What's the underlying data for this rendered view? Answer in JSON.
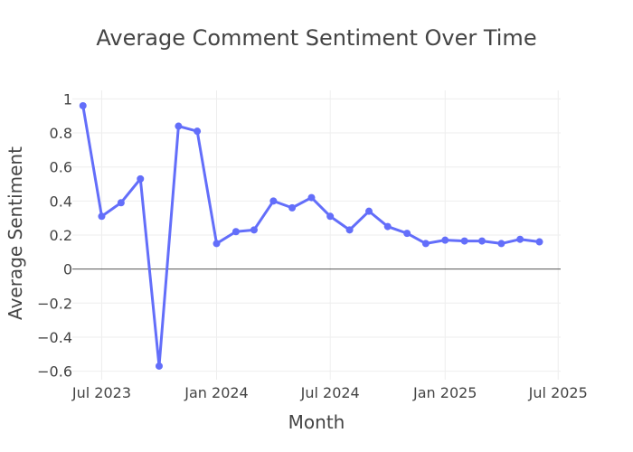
{
  "chart_data": {
    "type": "line",
    "title": "Average Comment Sentiment Over Time",
    "xlabel": "Month",
    "ylabel": "Average Sentiment",
    "xlim": [
      "2023-05-15",
      "2025-07-05"
    ],
    "ylim": [
      -0.65,
      1.05
    ],
    "grid": true,
    "legend": "none",
    "color": "#636efa",
    "x_ticks": [
      {
        "date": "2023-07-01",
        "label": "Jul 2023"
      },
      {
        "date": "2024-01-01",
        "label": "Jan 2024"
      },
      {
        "date": "2024-07-01",
        "label": "Jul 2024"
      },
      {
        "date": "2025-01-01",
        "label": "Jan 2025"
      },
      {
        "date": "2025-07-01",
        "label": "Jul 2025"
      }
    ],
    "y_ticks": [
      {
        "value": -0.6,
        "label": "−0.6"
      },
      {
        "value": -0.4,
        "label": "−0.4"
      },
      {
        "value": -0.2,
        "label": "−0.2"
      },
      {
        "value": 0,
        "label": "0"
      },
      {
        "value": 0.2,
        "label": "0.2"
      },
      {
        "value": 0.4,
        "label": "0.4"
      },
      {
        "value": 0.6,
        "label": "0.6"
      },
      {
        "value": 0.8,
        "label": "0.8"
      },
      {
        "value": 1,
        "label": "1"
      }
    ],
    "series": [
      {
        "x": [
          "2023-06-01",
          "2023-07-01",
          "2023-08-01",
          "2023-09-01",
          "2023-10-01",
          "2023-11-01",
          "2023-12-01",
          "2024-01-01",
          "2024-02-01",
          "2024-03-01",
          "2024-04-01",
          "2024-05-01",
          "2024-06-01",
          "2024-07-01",
          "2024-08-01",
          "2024-09-01",
          "2024-10-01",
          "2024-11-01",
          "2024-12-01",
          "2025-01-01",
          "2025-02-01",
          "2025-03-01",
          "2025-04-01",
          "2025-05-01",
          "2025-06-01"
        ],
        "values": [
          0.96,
          0.31,
          0.39,
          0.53,
          -0.57,
          0.84,
          0.81,
          0.15,
          0.22,
          0.23,
          0.4,
          0.36,
          0.42,
          0.31,
          0.23,
          0.34,
          0.25,
          0.21,
          0.15,
          0.17,
          0.165,
          0.165,
          0.15,
          0.175,
          0.16
        ]
      }
    ]
  }
}
